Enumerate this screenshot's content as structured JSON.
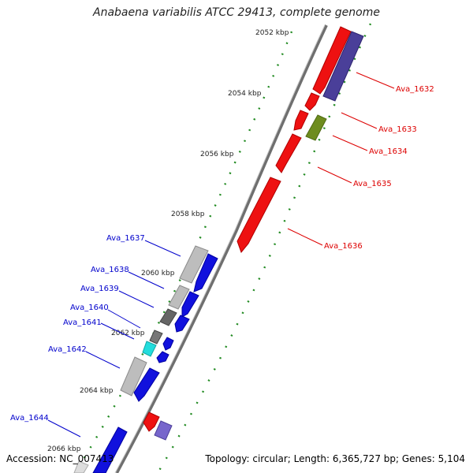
{
  "title": "Anabaena variabilis ATCC 29413, complete genome",
  "footer": {
    "accession": "Accession: NC_007413",
    "summary": "Topology: circular; Length: 6,365,727 bp; Genes: 5,104"
  },
  "colors": {
    "backbone": "#808080",
    "tick_ring": "#208a20",
    "red_gene": "#ee1111",
    "blue_gene": "#1111dd",
    "gray_gene": "#bdbdbd",
    "dark_gray_gene": "#666666",
    "cyan_gene": "#22dddd",
    "olive_gene": "#6e8c1e",
    "slate_gene": "#4a3f99",
    "lavender_gene": "#7766cc",
    "red_label": "#dd0000",
    "blue_label": "#0000cc"
  },
  "scale_labels": [
    "2052 kbp",
    "2054 kbp",
    "2056 kbp",
    "2058 kbp",
    "2060 kbp",
    "2062 kbp",
    "2064 kbp",
    "2066 kbp"
  ],
  "gene_labels": {
    "right": [
      "Ava_1632",
      "Ava_1633",
      "Ava_1634",
      "Ava_1635",
      "Ava_1636"
    ],
    "left": [
      "Ava_1637",
      "Ava_1638",
      "Ava_1639",
      "Ava_1640",
      "Ava_1641",
      "Ava_1642",
      "Ava_1644"
    ]
  }
}
